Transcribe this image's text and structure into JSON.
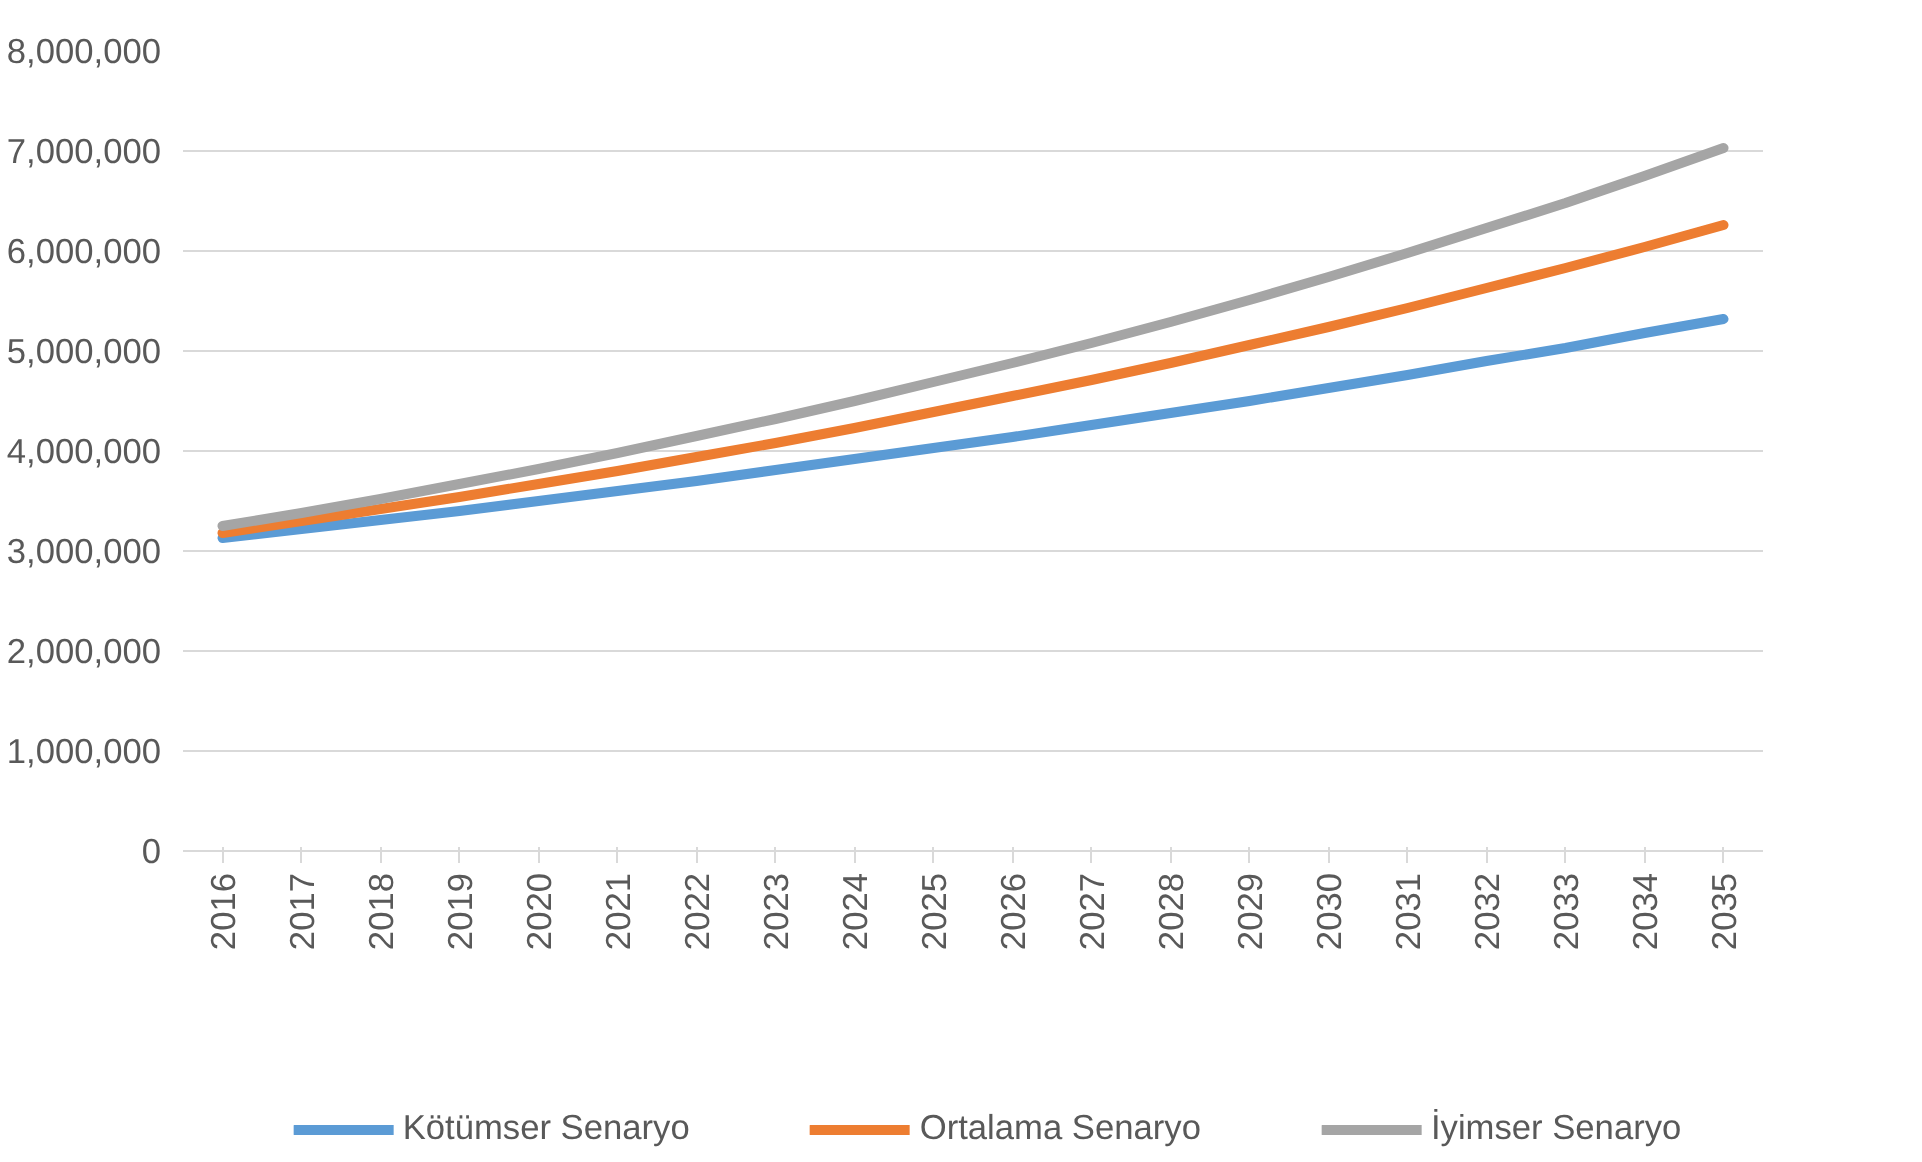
{
  "chart_data": {
    "type": "line",
    "categories": [
      "2016",
      "2017",
      "2018",
      "2019",
      "2020",
      "2021",
      "2022",
      "2023",
      "2024",
      "2025",
      "2026",
      "2027",
      "2028",
      "2029",
      "2030",
      "2031",
      "2032",
      "2033",
      "2034",
      "2035"
    ],
    "series": [
      {
        "name": "Kötümser Senaryo",
        "color": "#5b9bd5",
        "values": [
          3130000,
          3220000,
          3310000,
          3400000,
          3500000,
          3600000,
          3700000,
          3810000,
          3920000,
          4030000,
          4140000,
          4260000,
          4380000,
          4500000,
          4630000,
          4760000,
          4900000,
          5030000,
          5180000,
          5320000
        ]
      },
      {
        "name": "Ortalama Senaryo",
        "color": "#ed7d31",
        "values": [
          3180000,
          3300000,
          3420000,
          3540000,
          3670000,
          3800000,
          3940000,
          4080000,
          4230000,
          4390000,
          4550000,
          4710000,
          4880000,
          5060000,
          5240000,
          5430000,
          5630000,
          5830000,
          6040000,
          6260000
        ]
      },
      {
        "name": "İyimser Senaryo",
        "color": "#a5a5a5",
        "values": [
          3250000,
          3380000,
          3520000,
          3670000,
          3820000,
          3980000,
          4150000,
          4320000,
          4500000,
          4690000,
          4880000,
          5080000,
          5290000,
          5510000,
          5740000,
          5980000,
          6230000,
          6480000,
          6750000,
          7030000
        ]
      }
    ],
    "ylim": [
      0,
      8000000
    ],
    "yticks": [
      0,
      {
        "value": 1000000,
        "label": "1,000,000"
      },
      {
        "value": 2000000,
        "label": "2,000,000"
      },
      {
        "value": 3000000,
        "label": "3,000,000"
      },
      {
        "value": 4000000,
        "label": "4,000,000"
      },
      {
        "value": 5000000,
        "label": "5,000,000"
      },
      {
        "value": 6000000,
        "label": "6,000,000"
      },
      {
        "value": 7000000,
        "label": "7,000,000"
      },
      {
        "value": 8000000,
        "label": "8,000,000"
      }
    ],
    "grid": "y",
    "legend": "bottom",
    "marker": "none",
    "line_style": "solid"
  }
}
